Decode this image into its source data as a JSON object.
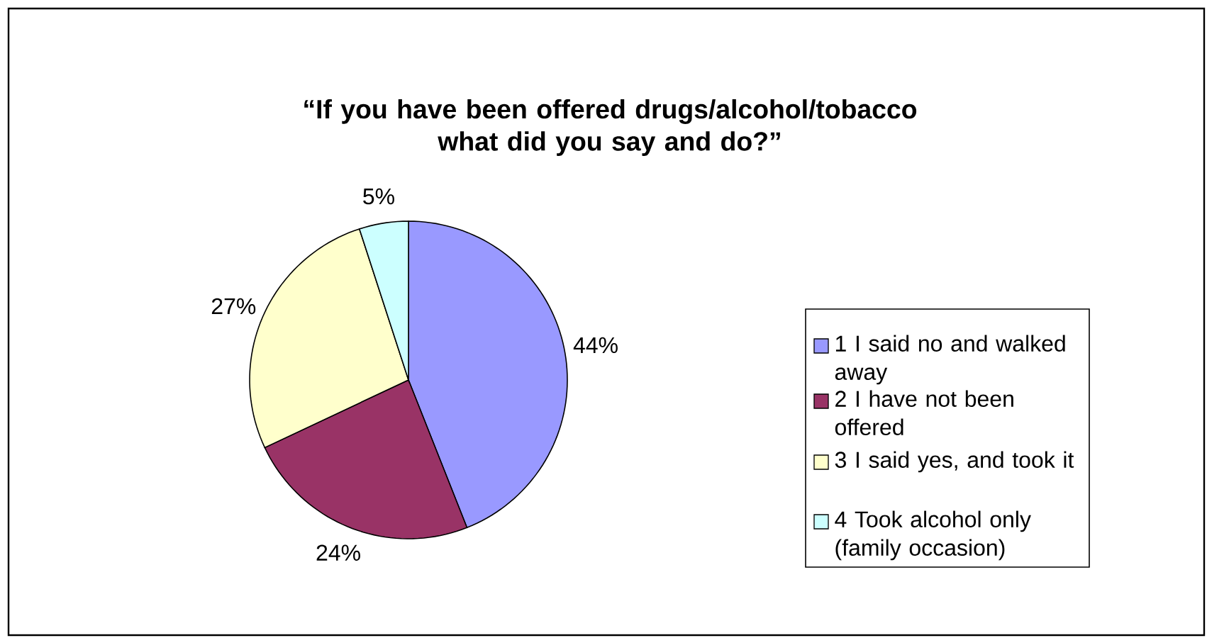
{
  "chart_data": {
    "type": "pie",
    "title": "“If you have been offered drugs/alcohol/tobacco what did you say and do?”",
    "categories": [
      "1 I said no and walked away",
      "2 I have not been offered",
      "3 I said yes, and took it",
      "4 Took alcohol only (family occasion)"
    ],
    "values": [
      44,
      24,
      27,
      5
    ],
    "value_labels": [
      "44%",
      "24%",
      "27%",
      "5%"
    ],
    "colors": [
      "#9999ff",
      "#993366",
      "#ffffcc",
      "#ccffff"
    ],
    "legend": "right"
  }
}
